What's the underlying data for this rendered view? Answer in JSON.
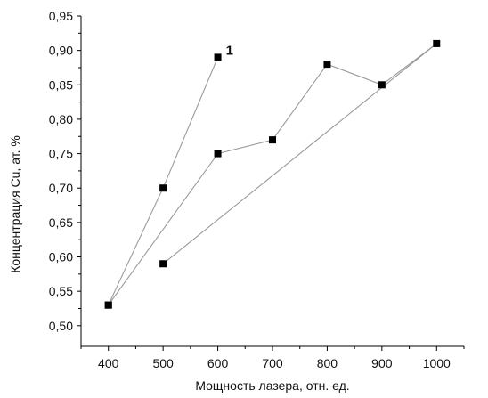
{
  "chart_data": {
    "type": "line",
    "title": "",
    "xlabel": "Мощность лазера, отн. ед.",
    "ylabel": "Концентрация Cu, ат. %",
    "xlim": [
      350,
      1050
    ],
    "ylim": [
      0.47,
      0.95
    ],
    "x_ticks": [
      400,
      500,
      600,
      700,
      800,
      900,
      1000
    ],
    "x_tick_labels": [
      "400",
      "500",
      "600",
      "700",
      "800",
      "900",
      "1000"
    ],
    "y_ticks": [
      0.5,
      0.55,
      0.6,
      0.65,
      0.7,
      0.75,
      0.8,
      0.85,
      0.9,
      0.95
    ],
    "y_tick_labels": [
      "0,50",
      "0,55",
      "0,60",
      "0,65",
      "0,70",
      "0,75",
      "0,80",
      "0,85",
      "0,90",
      "0,95"
    ],
    "grid": false,
    "line_color": "#9a9a9a",
    "marker_color": "#000000",
    "marker": "square",
    "series": [
      {
        "name": "1",
        "x": [
          400,
          500,
          600
        ],
        "y": [
          0.53,
          0.7,
          0.89
        ]
      },
      {
        "x": [
          400,
          600,
          700,
          800,
          900,
          1000,
          500
        ],
        "y": [
          0.53,
          0.75,
          0.77,
          0.88,
          0.85,
          0.91,
          0.59
        ]
      }
    ],
    "annotations": [
      {
        "text": "1",
        "x": 600,
        "y": 0.89
      }
    ]
  }
}
